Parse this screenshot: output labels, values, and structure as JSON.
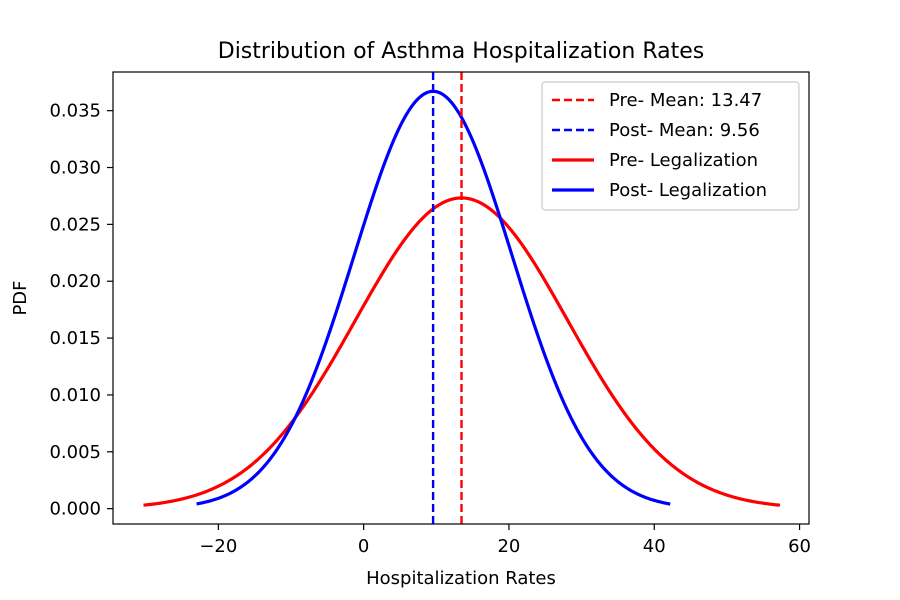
{
  "chart_data": {
    "type": "line",
    "title": "Distribution of Asthma Hospitalization Rates",
    "xlabel": "Hospitalization Rates",
    "ylabel": "PDF",
    "xlim": [
      -34.5,
      61.3
    ],
    "ylim": [
      -0.00135,
      0.0384
    ],
    "xticks": [
      -20,
      0,
      20,
      40,
      60
    ],
    "xtick_labels": [
      "−20",
      "0",
      "20",
      "40",
      "60"
    ],
    "yticks": [
      0.0,
      0.005,
      0.01,
      0.015,
      0.02,
      0.025,
      0.03,
      0.035
    ],
    "ytick_labels": [
      "0.000",
      "0.005",
      "0.010",
      "0.015",
      "0.020",
      "0.025",
      "0.030",
      "0.035"
    ],
    "grid": false,
    "legend_position": "top-right",
    "series": [
      {
        "name": "Pre- Legalization",
        "kind": "normal-pdf",
        "mean": 13.47,
        "std": 14.6,
        "x_range": [
          -30.3,
          57.3
        ],
        "color": "#ff0000",
        "style": "solid"
      },
      {
        "name": "Post- Legalization",
        "kind": "normal-pdf",
        "mean": 9.56,
        "std": 10.87,
        "x_range": [
          -23.0,
          42.2
        ],
        "color": "#0000ff",
        "style": "solid"
      }
    ],
    "reference_lines": [
      {
        "name": "Pre- Mean: 13.47",
        "x": 13.47,
        "color": "#ff0000",
        "style": "dashed"
      },
      {
        "name": "Post- Mean: 9.56",
        "x": 9.56,
        "color": "#0000ff",
        "style": "dashed"
      }
    ],
    "legend": [
      {
        "label": "Pre- Mean: 13.47",
        "color": "#ff0000",
        "style": "dashed"
      },
      {
        "label": "Post- Mean: 9.56",
        "color": "#0000ff",
        "style": "dashed"
      },
      {
        "label": "Pre- Legalization",
        "color": "#ff0000",
        "style": "solid"
      },
      {
        "label": "Post- Legalization",
        "color": "#0000ff",
        "style": "solid"
      }
    ]
  }
}
